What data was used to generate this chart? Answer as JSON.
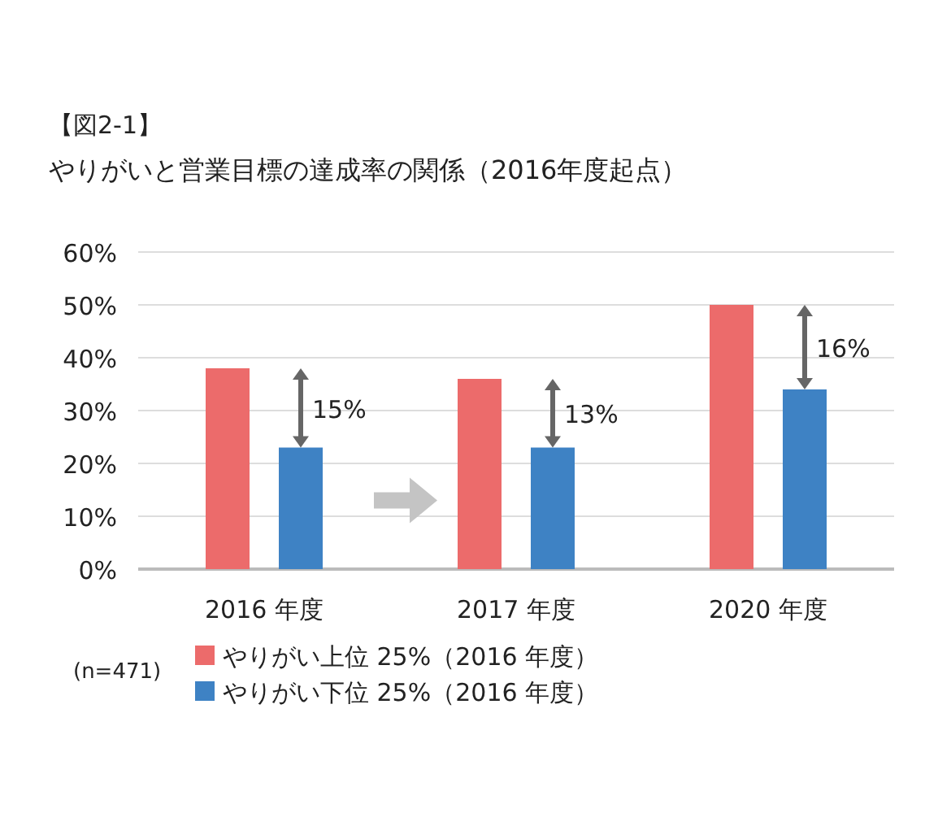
{
  "chart_data": {
    "type": "bar",
    "title": "【図2-1】",
    "subtitle": "やりがいと営業目標の達成率の関係（2016年度起点）",
    "categories": [
      "2016 年度",
      "2017 年度",
      "2020 年度"
    ],
    "series": [
      {
        "name": "やりがい上位 25%（2016 年度）",
        "color": "#ec6b6b",
        "values": [
          38,
          36,
          50
        ]
      },
      {
        "name": "やりがい下位 25%（2016 年度）",
        "color": "#3e82c4",
        "values": [
          23,
          23,
          34
        ]
      }
    ],
    "ylim": [
      0,
      60
    ],
    "yticks": [
      {
        "value": 0,
        "label": "0%"
      },
      {
        "value": 10,
        "label": "10%"
      },
      {
        "value": 20,
        "label": "20%"
      },
      {
        "value": 30,
        "label": "30%"
      },
      {
        "value": 40,
        "label": "40%"
      },
      {
        "value": 50,
        "label": "50%"
      },
      {
        "value": 60,
        "label": "60%"
      }
    ],
    "grid": "y",
    "legend": "bottom",
    "annotations": [
      "15%",
      "13%",
      "16%",
      "(n=471)"
    ]
  }
}
